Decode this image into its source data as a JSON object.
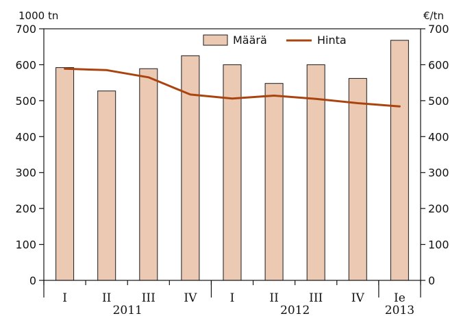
{
  "chart_data": {
    "type": "bar",
    "categories": [
      "I",
      "II",
      "III",
      "IV",
      "I",
      "II",
      "III",
      "IV",
      "Ie"
    ],
    "groups": [
      {
        "label": "2011",
        "categories": [
          "I",
          "II",
          "III",
          "IV"
        ]
      },
      {
        "label": "2012",
        "categories": [
          "I",
          "II",
          "III",
          "IV"
        ]
      },
      {
        "label": "2013",
        "categories": [
          "Ie"
        ]
      }
    ],
    "series": [
      {
        "name": "Määrä",
        "type": "bar",
        "axis": "left",
        "color": "#ebc9b3",
        "values": [
          592,
          527,
          589,
          625,
          600,
          548,
          600,
          562,
          668
        ]
      },
      {
        "name": "Hinta",
        "type": "line",
        "axis": "right",
        "color": "#a9440f",
        "values": [
          589,
          585,
          565,
          517,
          506,
          514,
          505,
          493,
          484
        ]
      }
    ],
    "y_left": {
      "label": "1000 tn",
      "range": [
        0,
        700
      ],
      "ticks": [
        0,
        100,
        200,
        300,
        400,
        500,
        600,
        700
      ]
    },
    "y_right": {
      "label": "€/tn",
      "range": [
        0,
        700
      ],
      "ticks": [
        0,
        100,
        200,
        300,
        400,
        500,
        600,
        700
      ]
    },
    "legend": {
      "position": "top-right",
      "entries": [
        "Määrä",
        "Hinta"
      ]
    },
    "grid": false,
    "colors": {
      "bar_fill": "#ebc9b3",
      "bar_stroke": "#1a1a1a",
      "line": "#a9440f",
      "axis": "#111111"
    }
  }
}
